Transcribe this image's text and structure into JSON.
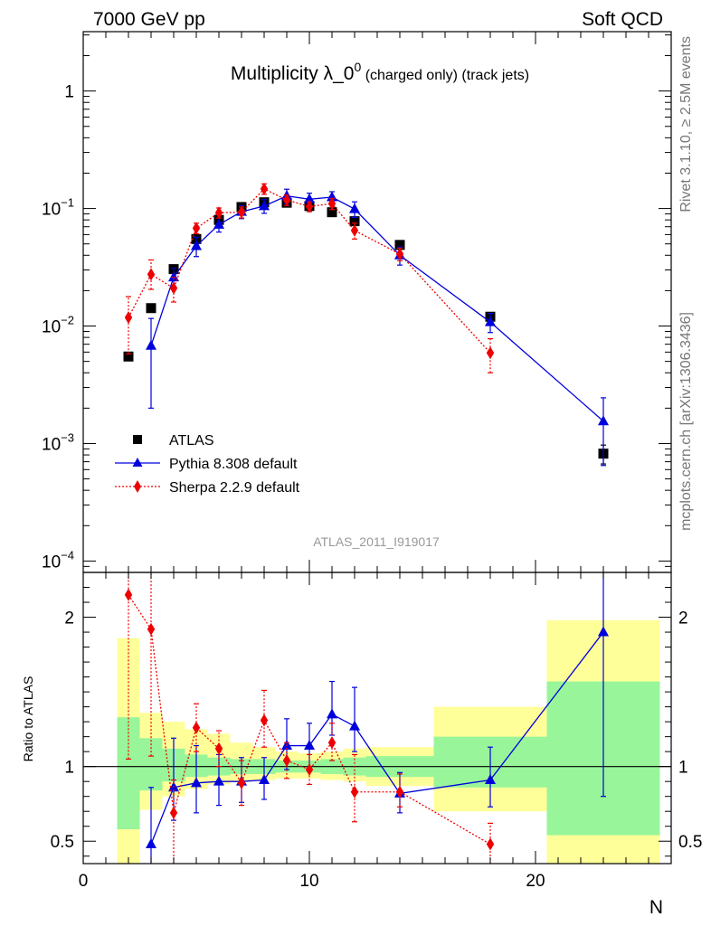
{
  "header": {
    "left": "7000 GeV pp",
    "right": "Soft QCD"
  },
  "side_labels": {
    "rivet": "Rivet 3.1.10, ≥ 2.5M events",
    "mcplots": "mcplots.cern.ch [arXiv:1306.3436]"
  },
  "chart_data": [
    {
      "type": "scatter",
      "panel": "main",
      "title_main": "Multiplicity λ_0",
      "title_sup": "0",
      "title_suffix": " (charged only) (track jets)",
      "reference": "ATLAS_2011_I919017",
      "yscale": "log",
      "xlim": [
        0,
        26
      ],
      "ylim": [
        8e-05,
        3.2
      ],
      "x_ticks": [
        0,
        10,
        20
      ],
      "x_tick_labels": [
        "0",
        "10",
        "20"
      ],
      "y_ticks": [
        1,
        0.1,
        0.01,
        0.001,
        0.0001
      ],
      "y_tick_labels": [
        {
          "base": "1",
          "exp": ""
        },
        {
          "base": "10",
          "exp": "−1"
        },
        {
          "base": "10",
          "exp": "−2"
        },
        {
          "base": "10",
          "exp": "−3"
        },
        {
          "base": "10",
          "exp": "−4"
        }
      ],
      "legend_position": "bottom-left",
      "series": [
        {
          "name": "ATLAS",
          "color": "#000000",
          "marker": "square",
          "line": "none",
          "x": [
            2,
            3,
            4,
            5,
            6,
            7,
            8,
            9,
            10,
            11,
            12,
            14,
            18,
            23
          ],
          "y": [
            0.0055,
            0.0142,
            0.0305,
            0.055,
            0.08,
            0.103,
            0.113,
            0.112,
            0.105,
            0.093,
            0.078,
            0.049,
            0.012,
            0.00082
          ],
          "yerr_lo": [
            0.0004,
            0.0008,
            0.0015,
            0.003,
            0.004,
            0.005,
            0.005,
            0.005,
            0.005,
            0.004,
            0.004,
            0.002,
            0.0008,
            0.00015
          ],
          "yerr_hi": [
            0.0004,
            0.0008,
            0.0015,
            0.003,
            0.004,
            0.005,
            0.005,
            0.005,
            0.005,
            0.004,
            0.004,
            0.002,
            0.0008,
            0.00015
          ]
        },
        {
          "name": "Pythia 8.308 default",
          "color": "#0000dd",
          "marker": "triangle",
          "line": "solid",
          "x": [
            3,
            4,
            5,
            6,
            7,
            8,
            9,
            10,
            11,
            12,
            14,
            18,
            23
          ],
          "y": [
            0.0068,
            0.026,
            0.048,
            0.073,
            0.094,
            0.105,
            0.128,
            0.12,
            0.125,
            0.099,
            0.04,
            0.0108,
            0.00155
          ],
          "yerr_lo": [
            0.0048,
            0.005,
            0.009,
            0.01,
            0.012,
            0.014,
            0.018,
            0.015,
            0.014,
            0.015,
            0.007,
            0.002,
            0.0009
          ],
          "yerr_hi": [
            0.0048,
            0.005,
            0.009,
            0.01,
            0.012,
            0.014,
            0.018,
            0.015,
            0.014,
            0.015,
            0.007,
            0.002,
            0.0009
          ]
        },
        {
          "name": "Sherpa 2.2.9 default",
          "color": "#ee0000",
          "marker": "diamond",
          "line": "dotted",
          "x": [
            2,
            3,
            4,
            5,
            6,
            7,
            8,
            9,
            10,
            11,
            12,
            14,
            18
          ],
          "y": [
            0.0118,
            0.0275,
            0.021,
            0.068,
            0.092,
            0.093,
            0.147,
            0.118,
            0.104,
            0.11,
            0.065,
            0.041,
            0.0059
          ],
          "yerr_lo": [
            0.006,
            0.007,
            0.005,
            0.007,
            0.009,
            0.01,
            0.015,
            0.012,
            0.01,
            0.012,
            0.01,
            0.005,
            0.0019
          ],
          "yerr_hi": [
            0.006,
            0.009,
            0.005,
            0.007,
            0.009,
            0.01,
            0.015,
            0.012,
            0.01,
            0.012,
            0.01,
            0.005,
            0.0019
          ]
        }
      ]
    },
    {
      "type": "scatter",
      "panel": "ratio",
      "ylabel": "Ratio to ATLAS",
      "xlabel": "N",
      "xlim": [
        0,
        26
      ],
      "ylim": [
        0.35,
        2.3
      ],
      "y_ticks": [
        0.5,
        1,
        2
      ],
      "y_tick_labels": [
        "0.5",
        "1",
        "2"
      ],
      "x_ticks": [
        0,
        10,
        20
      ],
      "x_tick_labels": [
        "0",
        "10",
        "20"
      ],
      "bands": {
        "green_color": "#99f599",
        "yellow_color": "#ffff99",
        "bins": [
          {
            "x0": 1.5,
            "x1": 2.5,
            "y_lo": 0.58,
            "y_hi": 1.33,
            "y2_lo": 0.34,
            "y2_hi": 1.86
          },
          {
            "x0": 2.5,
            "x1": 3.5,
            "y_lo": 0.84,
            "y_hi": 1.19,
            "y2_lo": 0.71,
            "y2_hi": 1.36
          },
          {
            "x0": 3.5,
            "x1": 4.5,
            "y_lo": 0.9,
            "y_hi": 1.12,
            "y2_lo": 0.8,
            "y2_hi": 1.3
          },
          {
            "x0": 4.5,
            "x1": 5.5,
            "y_lo": 0.93,
            "y_hi": 1.08,
            "y2_lo": 0.85,
            "y2_hi": 1.25
          },
          {
            "x0": 5.5,
            "x1": 6.5,
            "y_lo": 0.94,
            "y_hi": 1.06,
            "y2_lo": 0.88,
            "y2_hi": 1.22
          },
          {
            "x0": 6.5,
            "x1": 7.5,
            "y_lo": 0.95,
            "y_hi": 1.05,
            "y2_lo": 0.9,
            "y2_hi": 1.16
          },
          {
            "x0": 7.5,
            "x1": 8.5,
            "y_lo": 0.95,
            "y_hi": 1.05,
            "y2_lo": 0.91,
            "y2_hi": 1.13
          },
          {
            "x0": 8.5,
            "x1": 9.5,
            "y_lo": 0.96,
            "y_hi": 1.04,
            "y2_lo": 0.92,
            "y2_hi": 1.1
          },
          {
            "x0": 9.5,
            "x1": 10.5,
            "y_lo": 0.96,
            "y_hi": 1.04,
            "y2_lo": 0.92,
            "y2_hi": 1.09
          },
          {
            "x0": 10.5,
            "x1": 11.5,
            "y_lo": 0.95,
            "y_hi": 1.05,
            "y2_lo": 0.91,
            "y2_hi": 1.1
          },
          {
            "x0": 11.5,
            "x1": 12.5,
            "y_lo": 0.94,
            "y_hi": 1.06,
            "y2_lo": 0.9,
            "y2_hi": 1.12
          },
          {
            "x0": 12.5,
            "x1": 15.5,
            "y_lo": 0.93,
            "y_hi": 1.07,
            "y2_lo": 0.87,
            "y2_hi": 1.13
          },
          {
            "x0": 15.5,
            "x1": 20.5,
            "y_lo": 0.86,
            "y_hi": 1.2,
            "y2_lo": 0.7,
            "y2_hi": 1.4
          },
          {
            "x0": 20.5,
            "x1": 25.5,
            "y_lo": 0.54,
            "y_hi": 1.57,
            "y2_lo": 0.34,
            "y2_hi": 1.98
          }
        ]
      },
      "series": [
        {
          "name": "Pythia 8.308 default",
          "color": "#0000dd",
          "marker": "triangle",
          "line": "solid",
          "x": [
            3,
            4,
            5,
            6,
            7,
            8,
            9,
            10,
            11,
            12,
            14,
            18,
            23
          ],
          "y": [
            0.48,
            0.86,
            0.89,
            0.9,
            0.9,
            0.91,
            1.14,
            1.14,
            1.35,
            1.27,
            0.82,
            0.91,
            1.9
          ],
          "yerr_lo": [
            0.35,
            0.22,
            0.2,
            0.16,
            0.14,
            0.13,
            0.16,
            0.14,
            0.14,
            0.17,
            0.13,
            0.18,
            1.1
          ],
          "yerr_hi": [
            0.38,
            0.33,
            0.25,
            0.18,
            0.16,
            0.15,
            0.18,
            0.15,
            0.22,
            0.26,
            0.14,
            0.22,
            0.8
          ]
        },
        {
          "name": "Sherpa 2.2.9 default",
          "color": "#ee0000",
          "marker": "diamond",
          "line": "dotted",
          "x": [
            2,
            3,
            4,
            5,
            6,
            7,
            8,
            9,
            10,
            11,
            12,
            14,
            18
          ],
          "y": [
            2.15,
            1.92,
            0.69,
            1.26,
            1.12,
            0.89,
            1.31,
            1.04,
            0.98,
            1.16,
            0.83,
            0.83,
            0.48
          ],
          "yerr_lo": [
            1.1,
            0.85,
            0.45,
            0.16,
            0.12,
            0.15,
            0.18,
            0.12,
            0.1,
            0.12,
            0.2,
            0.1,
            0.15
          ],
          "yerr_hi": [
            0.15,
            0.5,
            0.22,
            0.16,
            0.12,
            0.15,
            0.2,
            0.12,
            0.1,
            0.13,
            0.25,
            0.12,
            0.14
          ]
        }
      ]
    }
  ]
}
